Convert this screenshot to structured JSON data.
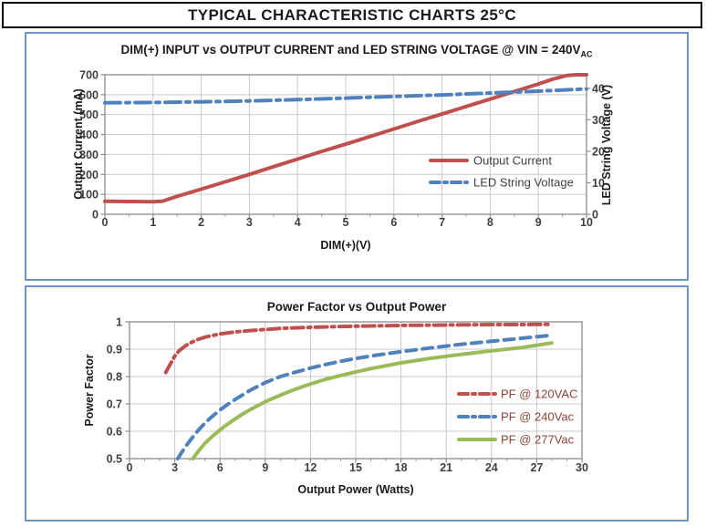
{
  "banner": {
    "title": "TYPICAL CHARACTERISTIC CHARTS 25°C"
  },
  "colors": {
    "grid": "#C9C9C9",
    "plot_border": "#8C8C8C",
    "tick_text": "#3F3F3F",
    "box_border": "#6C96C8",
    "red": "#C0504D",
    "blue": "#4F81BD",
    "green": "#9BBB59"
  },
  "chart_data": [
    {
      "type": "line",
      "title": "DIM(+) INPUT vs OUTPUT CURRENT and LED STRING VOLTAGE @ VIN = 240V",
      "title_sub": "AC",
      "xlabel": "DIM(+)(V)",
      "ylabel": "Output Current (mA)",
      "ylabel_right": "LED String Voltage (V)",
      "xlim": [
        0,
        10
      ],
      "xticks": [
        0,
        1,
        2,
        3,
        4,
        5,
        6,
        7,
        8,
        9,
        10
      ],
      "ylim": [
        0,
        700
      ],
      "yticks": [
        0,
        100,
        200,
        300,
        400,
        500,
        600,
        700
      ],
      "ylim_right": [
        0,
        44.3
      ],
      "yticks_right": [
        0,
        10,
        20,
        30,
        40
      ],
      "grid": true,
      "legend_position": "inside-right",
      "legend_text_color": "#3F3F3F",
      "series": [
        {
          "name": "Output Current",
          "axis": "left",
          "color": "#C0504D",
          "style": "solid",
          "points": [
            [
              0,
              65
            ],
            [
              0.5,
              64
            ],
            [
              1,
              63
            ],
            [
              1.2,
              66
            ],
            [
              1.5,
              90
            ],
            [
              2,
              126
            ],
            [
              2.5,
              163
            ],
            [
              3,
              200
            ],
            [
              3.5,
              239
            ],
            [
              4,
              277
            ],
            [
              4.5,
              315
            ],
            [
              5,
              352
            ],
            [
              5.5,
              390
            ],
            [
              6,
              428
            ],
            [
              6.5,
              466
            ],
            [
              7,
              503
            ],
            [
              7.5,
              541
            ],
            [
              8,
              578
            ],
            [
              8.5,
              616
            ],
            [
              9,
              654
            ],
            [
              9.3,
              678
            ],
            [
              9.6,
              697
            ],
            [
              9.8,
              700
            ],
            [
              10,
              700
            ]
          ]
        },
        {
          "name": "LED String Voltage",
          "axis": "right",
          "color": "#4F81BD",
          "style": "dashdot",
          "points": [
            [
              0,
              35.4
            ],
            [
              1,
              35.5
            ],
            [
              2,
              35.7
            ],
            [
              3,
              36.0
            ],
            [
              4,
              36.4
            ],
            [
              5,
              36.9
            ],
            [
              6,
              37.4
            ],
            [
              7,
              37.9
            ],
            [
              8,
              38.5
            ],
            [
              9,
              39.1
            ],
            [
              10,
              39.8
            ]
          ]
        }
      ]
    },
    {
      "type": "line",
      "title": "Power Factor vs Output Power",
      "xlabel": "Output Power (Watts)",
      "ylabel": "Power Factor",
      "xlim": [
        0,
        30
      ],
      "xticks": [
        0,
        3,
        6,
        9,
        12,
        15,
        18,
        21,
        24,
        27,
        30
      ],
      "ylim": [
        0.5,
        1
      ],
      "yticks": [
        0.5,
        0.6,
        0.7,
        0.8,
        0.9,
        1
      ],
      "grid": true,
      "legend_position": "inside-right",
      "legend_text_color": "#8E4339",
      "series": [
        {
          "name": "PF @ 120VAC",
          "axis": "left",
          "color": "#C0504D",
          "style": "dashdot",
          "points": [
            [
              2.4,
              0.815
            ],
            [
              2.7,
              0.845
            ],
            [
              3,
              0.875
            ],
            [
              3.3,
              0.895
            ],
            [
              3.7,
              0.912
            ],
            [
              4,
              0.922
            ],
            [
              4.5,
              0.935
            ],
            [
              5,
              0.944
            ],
            [
              6,
              0.956
            ],
            [
              7,
              0.963
            ],
            [
              8,
              0.968
            ],
            [
              9,
              0.972
            ],
            [
              10,
              0.976
            ],
            [
              12,
              0.98
            ],
            [
              14,
              0.983
            ],
            [
              16,
              0.985
            ],
            [
              18,
              0.987
            ],
            [
              20,
              0.988
            ],
            [
              22,
              0.989
            ],
            [
              24,
              0.99
            ],
            [
              26,
              0.99
            ],
            [
              28,
              0.991
            ]
          ]
        },
        {
          "name": "PF @ 240Vac",
          "axis": "left",
          "color": "#4F81BD",
          "style": "dashed",
          "points": [
            [
              3.2,
              0.5
            ],
            [
              3.6,
              0.535
            ],
            [
              4,
              0.565
            ],
            [
              4.5,
              0.6
            ],
            [
              5,
              0.63
            ],
            [
              5.5,
              0.655
            ],
            [
              6,
              0.678
            ],
            [
              6.5,
              0.698
            ],
            [
              7,
              0.716
            ],
            [
              7.5,
              0.733
            ],
            [
              8,
              0.75
            ],
            [
              9,
              0.778
            ],
            [
              10,
              0.8
            ],
            [
              11,
              0.816
            ],
            [
              12,
              0.831
            ],
            [
              13,
              0.844
            ],
            [
              14,
              0.856
            ],
            [
              15,
              0.866
            ],
            [
              16,
              0.875
            ],
            [
              18,
              0.891
            ],
            [
              20,
              0.905
            ],
            [
              22,
              0.918
            ],
            [
              24,
              0.929
            ],
            [
              26,
              0.94
            ],
            [
              28,
              0.951
            ]
          ]
        },
        {
          "name": "PF @ 277Vac",
          "axis": "left",
          "color": "#9BBB59",
          "style": "solid",
          "points": [
            [
              4.2,
              0.5
            ],
            [
              4.6,
              0.53
            ],
            [
              5,
              0.556
            ],
            [
              5.5,
              0.582
            ],
            [
              6,
              0.605
            ],
            [
              6.5,
              0.626
            ],
            [
              7,
              0.645
            ],
            [
              7.5,
              0.663
            ],
            [
              8,
              0.679
            ],
            [
              9,
              0.708
            ],
            [
              10,
              0.732
            ],
            [
              11,
              0.754
            ],
            [
              12,
              0.773
            ],
            [
              13,
              0.79
            ],
            [
              14,
              0.804
            ],
            [
              15,
              0.817
            ],
            [
              16,
              0.829
            ],
            [
              18,
              0.85
            ],
            [
              20,
              0.867
            ],
            [
              22,
              0.881
            ],
            [
              24,
              0.894
            ],
            [
              26,
              0.906
            ],
            [
              28,
              0.923
            ]
          ]
        }
      ]
    }
  ]
}
